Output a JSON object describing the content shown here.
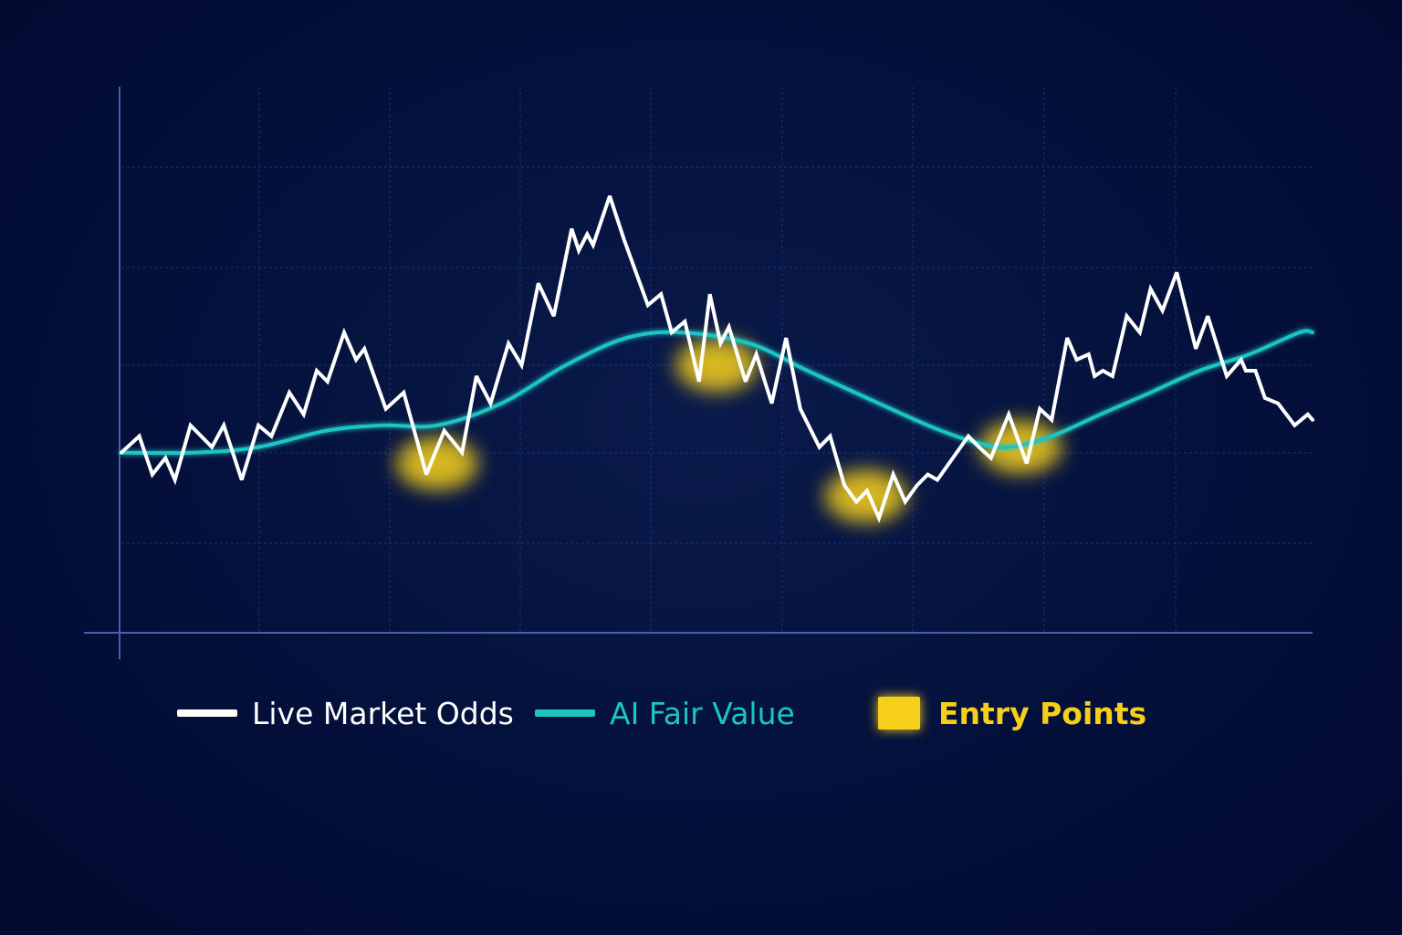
{
  "colors": {
    "market": "#ffffff",
    "fair": "#1ec4c4",
    "entry": "#f5cf1a",
    "axis": "#4a5fa8",
    "grid": "#243a80"
  },
  "legend": {
    "market_label": "Live Market Odds",
    "fair_label": "AI Fair Value",
    "entry_label": "Entry Points"
  },
  "chart_data": {
    "type": "line",
    "title": "",
    "xlabel": "",
    "ylabel": "",
    "grid": true,
    "legend_position": "bottom",
    "xlim": [
      0,
      100
    ],
    "ylim": [
      0,
      100
    ],
    "series": [
      {
        "name": "Live Market Odds",
        "points": [
          [
            0,
            33
          ],
          [
            1.5,
            36
          ],
          [
            2.6,
            29
          ],
          [
            3.7,
            32
          ],
          [
            4.5,
            28
          ],
          [
            5.8,
            38
          ],
          [
            7.6,
            34
          ],
          [
            8.6,
            38
          ],
          [
            10.1,
            28
          ],
          [
            11.5,
            38
          ],
          [
            12.6,
            36
          ],
          [
            14.1,
            44
          ],
          [
            15.3,
            40
          ],
          [
            16.4,
            48
          ],
          [
            17.3,
            46
          ],
          [
            18.7,
            55
          ],
          [
            19.7,
            50
          ],
          [
            20.4,
            52
          ],
          [
            22.2,
            41
          ],
          [
            23.7,
            44
          ],
          [
            25.6,
            29
          ],
          [
            27.1,
            37
          ],
          [
            28.6,
            33
          ],
          [
            29.8,
            47
          ],
          [
            31,
            42
          ],
          [
            32.5,
            53
          ],
          [
            33.6,
            49
          ],
          [
            35,
            64
          ],
          [
            36.3,
            58
          ],
          [
            37.8,
            74
          ],
          [
            38.4,
            70
          ],
          [
            39.1,
            73
          ],
          [
            39.6,
            71
          ],
          [
            41,
            80
          ],
          [
            42.2,
            72
          ],
          [
            44.2,
            60
          ],
          [
            45.3,
            62
          ],
          [
            46.2,
            55
          ],
          [
            47.3,
            57
          ],
          [
            48.5,
            46
          ],
          [
            49.4,
            62
          ],
          [
            50.3,
            53
          ],
          [
            51,
            56
          ],
          [
            52.4,
            46
          ],
          [
            53.3,
            51
          ],
          [
            54.6,
            42
          ],
          [
            55.8,
            54
          ],
          [
            57,
            41
          ],
          [
            58.6,
            34
          ],
          [
            59.5,
            36
          ],
          [
            60.7,
            27
          ],
          [
            61.7,
            24
          ],
          [
            62.6,
            26
          ],
          [
            63.6,
            21
          ],
          [
            64.8,
            29
          ],
          [
            65.8,
            24
          ],
          [
            66.8,
            27
          ],
          [
            67.7,
            29
          ],
          [
            68.5,
            28
          ],
          [
            69.8,
            32
          ],
          [
            71.1,
            36
          ],
          [
            72,
            34
          ],
          [
            73,
            32
          ],
          [
            74.5,
            40
          ],
          [
            76,
            31
          ],
          [
            77.1,
            41
          ],
          [
            78.1,
            39
          ],
          [
            79.4,
            54
          ],
          [
            80.2,
            50
          ],
          [
            81.2,
            51
          ],
          [
            81.7,
            47
          ],
          [
            82.4,
            48
          ],
          [
            83.2,
            47
          ],
          [
            84.4,
            58
          ],
          [
            85.5,
            55
          ],
          [
            86.4,
            63
          ],
          [
            87.4,
            59
          ],
          [
            88.6,
            66
          ],
          [
            90.2,
            52
          ],
          [
            91.2,
            58
          ],
          [
            92.8,
            47
          ],
          [
            94,
            50
          ],
          [
            94.4,
            48
          ],
          [
            95.2,
            48
          ],
          [
            96,
            43
          ],
          [
            97.1,
            42
          ],
          [
            98.5,
            38
          ],
          [
            99.6,
            40
          ],
          [
            100,
            39
          ]
        ]
      },
      {
        "name": "AI Fair Value",
        "points": [
          [
            0,
            33
          ],
          [
            6.1,
            33
          ],
          [
            11.5,
            34
          ],
          [
            17.2,
            37
          ],
          [
            22,
            38
          ],
          [
            26.5,
            38
          ],
          [
            31.9,
            42
          ],
          [
            37.3,
            49
          ],
          [
            42.4,
            54
          ],
          [
            47,
            55
          ],
          [
            52.7,
            53
          ],
          [
            57.6,
            48
          ],
          [
            62.6,
            43
          ],
          [
            67.7,
            38
          ],
          [
            71.5,
            35
          ],
          [
            74.5,
            34
          ],
          [
            78.1,
            36
          ],
          [
            82.2,
            40
          ],
          [
            86.4,
            44
          ],
          [
            90.5,
            48
          ],
          [
            94.7,
            51
          ],
          [
            98.9,
            55
          ],
          [
            100,
            55
          ]
        ]
      }
    ],
    "entry_points": [
      {
        "x": 26.5,
        "y": 31
      },
      {
        "x": 50,
        "y": 49
      },
      {
        "x": 62.5,
        "y": 25
      },
      {
        "x": 75.5,
        "y": 34
      }
    ]
  }
}
